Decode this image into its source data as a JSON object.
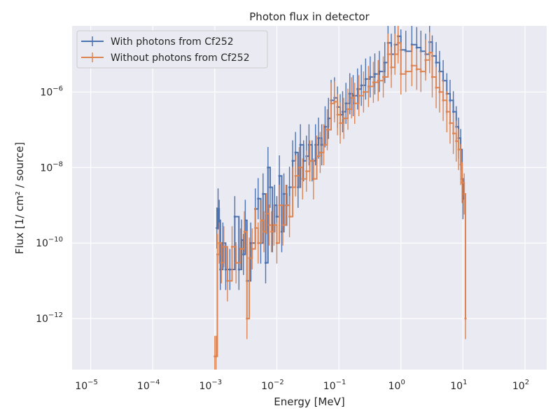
{
  "chart_data": {
    "type": "line",
    "title": "Photon flux in detector",
    "xlabel": "Energy [MeV]",
    "ylabel": "Flux [1/ cm² / source]",
    "xscale": "log",
    "yscale": "log",
    "xlim_exponents": [
      -5.3,
      2.35
    ],
    "ylim_exponents": [
      -13.35,
      -4.25
    ],
    "xticks": [
      {
        "base": "10",
        "exp": "−5",
        "value": 1e-05
      },
      {
        "base": "10",
        "exp": "−4",
        "value": 0.0001
      },
      {
        "base": "10",
        "exp": "−3",
        "value": 0.001
      },
      {
        "base": "10",
        "exp": "−2",
        "value": 0.01
      },
      {
        "base": "10",
        "exp": "−1",
        "value": 0.1
      },
      {
        "base": "10",
        "exp": "0",
        "value": 1
      },
      {
        "base": "10",
        "exp": "1",
        "value": 10
      },
      {
        "base": "10",
        "exp": "2",
        "value": 100
      }
    ],
    "yticks": [
      {
        "base": "10",
        "exp": "−12",
        "value": 1e-12
      },
      {
        "base": "10",
        "exp": "−10",
        "value": 1e-10
      },
      {
        "base": "10",
        "exp": "−8",
        "value": 1e-08
      },
      {
        "base": "10",
        "exp": "−6",
        "value": 1e-06
      }
    ],
    "grid": true,
    "legend_position": "top-left",
    "series": [
      {
        "name": "With photons from Cf252",
        "color": "#4c72b0",
        "points": [
          [
            0.00108,
            2.5e-10
          ],
          [
            0.00113,
            8e-10
          ],
          [
            0.00118,
            4e-10
          ],
          [
            0.00123,
            2e-11
          ],
          [
            0.00135,
            1e-10
          ],
          [
            0.0015,
            2e-11
          ],
          [
            0.00175,
            2e-11
          ],
          [
            0.0021,
            5e-10
          ],
          [
            0.00245,
            2e-11
          ],
          [
            0.0027,
            1.2e-10
          ],
          [
            0.0029,
            5e-11
          ],
          [
            0.0031,
            4e-10
          ],
          [
            0.0033,
            1e-11
          ],
          [
            0.0038,
            1e-10
          ],
          [
            0.0045,
            8e-10
          ],
          [
            0.005,
            1.5e-09
          ],
          [
            0.0055,
            1e-10
          ],
          [
            0.006,
            2e-09
          ],
          [
            0.0066,
            3e-11
          ],
          [
            0.0072,
            1e-08
          ],
          [
            0.0078,
            3e-09
          ],
          [
            0.0085,
            2e-10
          ],
          [
            0.0092,
            1e-09
          ],
          [
            0.01,
            5e-10
          ],
          [
            0.011,
            6e-09
          ],
          [
            0.012,
            2e-10
          ],
          [
            0.013,
            2e-09
          ],
          [
            0.0145,
            1e-09
          ],
          [
            0.016,
            3e-09
          ],
          [
            0.018,
            1.5e-08
          ],
          [
            0.02,
            2.5e-08
          ],
          [
            0.022,
            3e-09
          ],
          [
            0.024,
            4e-08
          ],
          [
            0.027,
            1.5e-08
          ],
          [
            0.03,
            2e-08
          ],
          [
            0.033,
            4e-08
          ],
          [
            0.037,
            1.5e-08
          ],
          [
            0.042,
            4e-08
          ],
          [
            0.047,
            6e-08
          ],
          [
            0.053,
            4e-08
          ],
          [
            0.06,
            1.2e-07
          ],
          [
            0.068,
            2e-07
          ],
          [
            0.075,
            6e-07
          ],
          [
            0.085,
            7e-07
          ],
          [
            0.095,
            4e-07
          ],
          [
            0.105,
            2.5e-07
          ],
          [
            0.115,
            3e-07
          ],
          [
            0.13,
            5e-07
          ],
          [
            0.15,
            9e-07
          ],
          [
            0.17,
            8e-07
          ],
          [
            0.2,
            1.2e-06
          ],
          [
            0.23,
            1.5e-06
          ],
          [
            0.27,
            2.2e-06
          ],
          [
            0.32,
            2.5e-06
          ],
          [
            0.38,
            3e-06
          ],
          [
            0.45,
            3.5e-06
          ],
          [
            0.55,
            6e-06
          ],
          [
            0.62,
            2e-05
          ],
          [
            0.7,
            1e-05
          ],
          [
            0.8,
            1.8e-05
          ],
          [
            0.9,
            3e-05
          ],
          [
            1.0,
            1.3e-05
          ],
          [
            1.2,
            1.2e-05
          ],
          [
            1.5,
            1.8e-05
          ],
          [
            1.8,
            1.5e-05
          ],
          [
            2.1,
            1.2e-05
          ],
          [
            2.5,
            1e-05
          ],
          [
            2.9,
            2.1e-05
          ],
          [
            3.2,
            9e-06
          ],
          [
            3.7,
            6e-06
          ],
          [
            4.2,
            3.5e-06
          ],
          [
            4.8,
            2e-06
          ],
          [
            5.5,
            9e-07
          ],
          [
            6.2,
            6e-07
          ],
          [
            7.0,
            3e-07
          ],
          [
            7.8,
            1.2e-07
          ],
          [
            8.5,
            6e-08
          ],
          [
            9.2,
            3e-08
          ],
          [
            9.7,
            5e-09
          ],
          [
            10.0,
            1.5e-09
          ]
        ]
      },
      {
        "name": "Without photons from Cf252",
        "color": "#dd8452",
        "points": [
          [
            0.001,
            1e-13
          ],
          [
            0.00105,
            1e-13
          ],
          [
            0.0011,
            5e-11
          ],
          [
            0.00118,
            1e-10
          ],
          [
            0.00128,
            3e-11
          ],
          [
            0.0014,
            8e-11
          ],
          [
            0.0016,
            1e-11
          ],
          [
            0.0019,
            8e-11
          ],
          [
            0.0022,
            3e-11
          ],
          [
            0.0026,
            7e-11
          ],
          [
            0.003,
            2e-10
          ],
          [
            0.0033,
            1e-12
          ],
          [
            0.0036,
            4e-11
          ],
          [
            0.004,
            7e-11
          ],
          [
            0.0045,
            2.5e-10
          ],
          [
            0.005,
            1e-10
          ],
          [
            0.0056,
            4e-10
          ],
          [
            0.0062,
            2e-10
          ],
          [
            0.0068,
            6e-10
          ],
          [
            0.0075,
            3e-10
          ],
          [
            0.0082,
            2e-10
          ],
          [
            0.009,
            3e-10
          ],
          [
            0.01,
            1e-10
          ],
          [
            0.011,
            1e-09
          ],
          [
            0.0125,
            3e-10
          ],
          [
            0.014,
            1e-09
          ],
          [
            0.016,
            5e-10
          ],
          [
            0.018,
            3e-09
          ],
          [
            0.02,
            6e-09
          ],
          [
            0.023,
            1e-08
          ],
          [
            0.026,
            5e-09
          ],
          [
            0.03,
            8e-09
          ],
          [
            0.034,
            1.5e-08
          ],
          [
            0.039,
            5e-09
          ],
          [
            0.044,
            2e-08
          ],
          [
            0.05,
            2.5e-08
          ],
          [
            0.057,
            4e-08
          ],
          [
            0.065,
            1e-07
          ],
          [
            0.075,
            5e-07
          ],
          [
            0.085,
            5.5e-07
          ],
          [
            0.095,
            2.5e-07
          ],
          [
            0.105,
            1.5e-07
          ],
          [
            0.12,
            2e-07
          ],
          [
            0.14,
            3.5e-07
          ],
          [
            0.16,
            7e-07
          ],
          [
            0.18,
            5e-07
          ],
          [
            0.21,
            8e-07
          ],
          [
            0.25,
            1e-06
          ],
          [
            0.3,
            1.4e-06
          ],
          [
            0.36,
            1.8e-06
          ],
          [
            0.43,
            2e-06
          ],
          [
            0.52,
            2.5e-06
          ],
          [
            0.62,
            1e-05
          ],
          [
            0.7,
            4.5e-06
          ],
          [
            0.8,
            1e-05
          ],
          [
            0.9,
            2e-05
          ],
          [
            1.0,
            3e-06
          ],
          [
            1.2,
            3.5e-06
          ],
          [
            1.5,
            5e-06
          ],
          [
            1.8,
            4e-06
          ],
          [
            2.1,
            3.5e-06
          ],
          [
            2.5,
            7e-06
          ],
          [
            2.9,
            1.1e-05
          ],
          [
            3.2,
            2.5e-06
          ],
          [
            3.7,
            1.3e-06
          ],
          [
            4.2,
            1e-06
          ],
          [
            4.8,
            6e-07
          ],
          [
            5.5,
            3e-07
          ],
          [
            6.2,
            1.5e-07
          ],
          [
            7.0,
            8e-08
          ],
          [
            7.8,
            5e-08
          ],
          [
            8.5,
            3e-08
          ],
          [
            9.2,
            1.2e-08
          ],
          [
            9.7,
            4e-09
          ],
          [
            10.5,
            2e-09
          ],
          [
            11.0,
            1e-12
          ]
        ]
      }
    ]
  }
}
